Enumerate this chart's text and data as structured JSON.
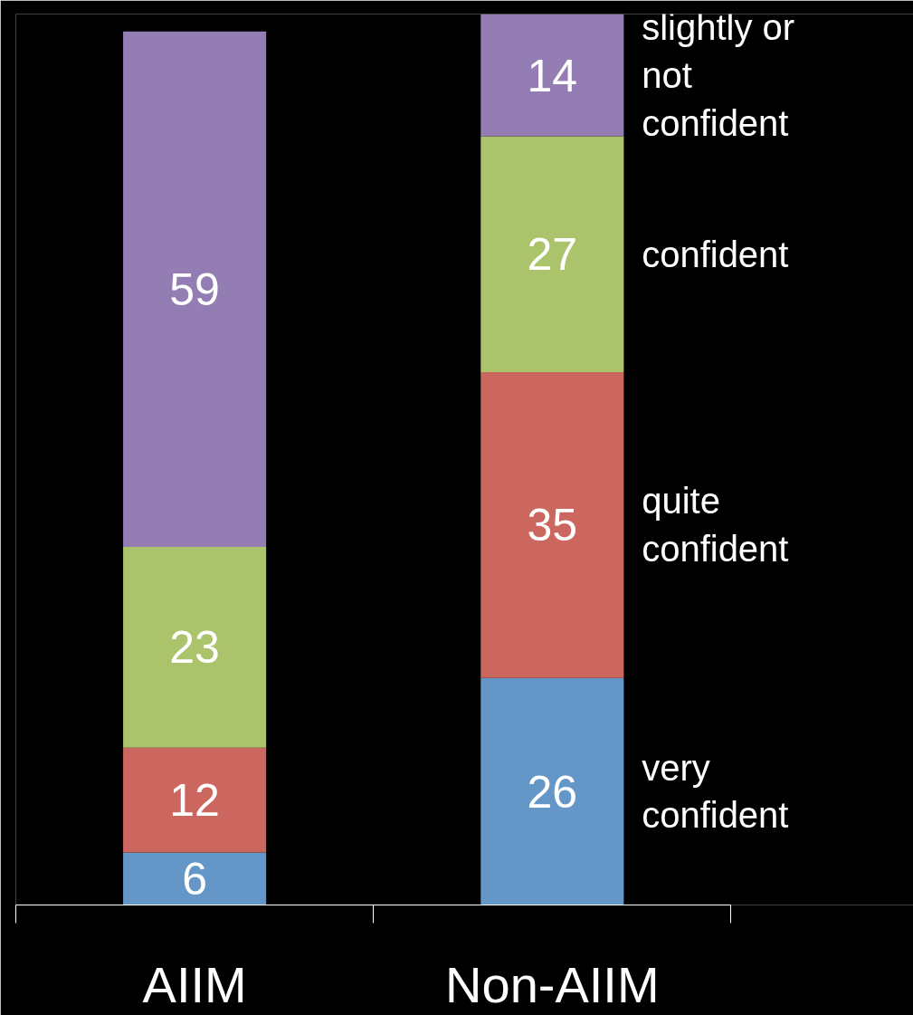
{
  "chart_data": {
    "type": "bar",
    "stacked": true,
    "data_labels": true,
    "categories": [
      "AIIM",
      "Non-AIIM"
    ],
    "series": [
      {
        "name": "very confident",
        "color": "#6497c8",
        "values": [
          6,
          26
        ]
      },
      {
        "name": "quite confident",
        "color": "#cc6760",
        "values": [
          12,
          35
        ]
      },
      {
        "name": "confident",
        "color": "#abc46c",
        "values": [
          23,
          27
        ]
      },
      {
        "name": "slightly or not confident",
        "color": "#937db2",
        "values": [
          59,
          14
        ]
      }
    ]
  }
}
